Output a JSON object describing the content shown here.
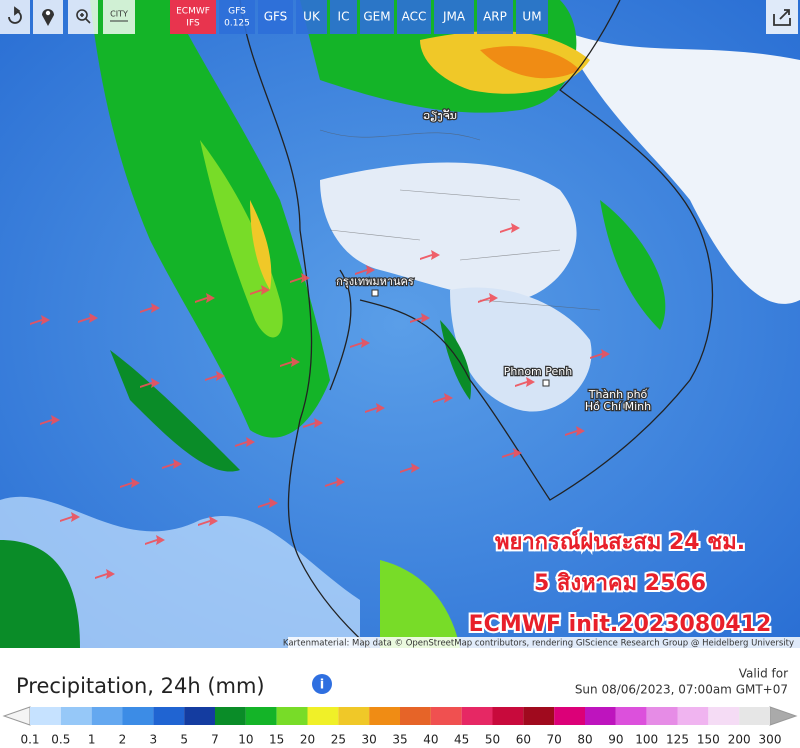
{
  "toolbar": {
    "city": "CITY",
    "models": [
      [
        "ECMWF",
        "IFS"
      ],
      [
        "GFS",
        "0.125"
      ],
      [
        "GFS"
      ],
      [
        "UK"
      ],
      [
        "IC"
      ],
      [
        "GEM"
      ],
      [
        "ACC"
      ],
      [
        "JMA"
      ],
      [
        "ARP"
      ],
      [
        "UM"
      ]
    ],
    "active_model": 0
  },
  "map": {
    "places": [
      {
        "lines": [
          "ວຽງຈັນ"
        ]
      },
      {
        "lines": [
          "กรุงเทพมหานคร"
        ]
      },
      {
        "lines": [
          "Phnom Penh"
        ]
      },
      {
        "lines": [
          "Thành phố",
          "Hồ Chí Minh"
        ]
      }
    ],
    "overlay": [
      "พยากรณ์ฝนสะสม 24 ชม.",
      "5 สิงหาคม 2566",
      "ECMWF init.2023080412"
    ],
    "attribution": "Kartenmaterial: Map data © OpenStreetMap contributors, rendering GIScience Research Group @ Heidelberg University"
  },
  "legend": {
    "title": "Precipitation, 24h (mm)",
    "valid_for": "Valid for",
    "valid_time": "Sun 08/06/2023, 07:00am GMT+07",
    "ticks": [
      0.1,
      0.5,
      1,
      2,
      3,
      5,
      7,
      10,
      15,
      20,
      25,
      30,
      35,
      40,
      45,
      50,
      60,
      70,
      80,
      90,
      100,
      125,
      150,
      200,
      300
    ],
    "colors": [
      "#c6e2ff",
      "#96c8f8",
      "#64a8f0",
      "#3c8ce6",
      "#2064d2",
      "#143ca0",
      "#0a8c28",
      "#14b428",
      "#78dc28",
      "#f0f028",
      "#f0c828",
      "#f08c14",
      "#e66428",
      "#f05050",
      "#e62864",
      "#c80a3c",
      "#a00a1e",
      "#dc0078",
      "#be14be",
      "#dc50dc",
      "#e68ce6",
      "#f0b4f0",
      "#f5dcf5",
      "#e6e6e6"
    ]
  }
}
